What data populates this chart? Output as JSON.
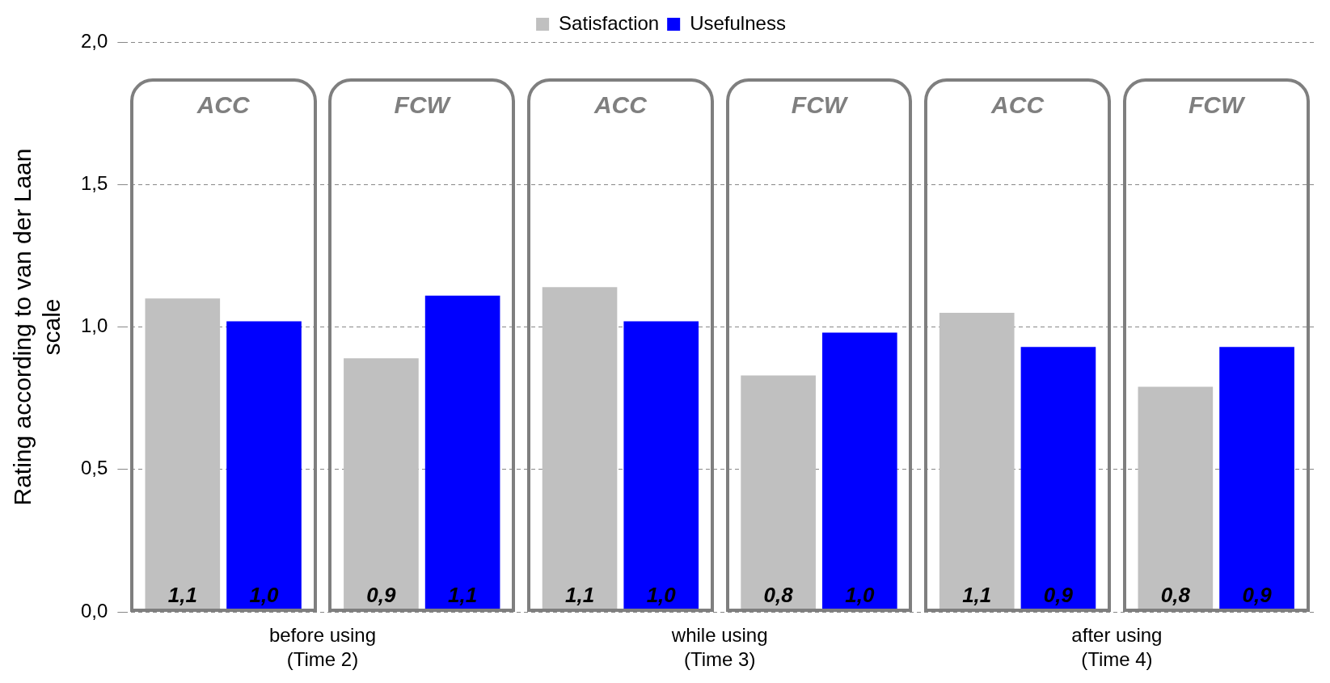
{
  "chart_data": {
    "type": "bar",
    "ylabel": "Rating according to van der Laan scale",
    "categories": [
      "ACC",
      "FCW",
      "ACC",
      "FCW",
      "ACC",
      "FCW"
    ],
    "series": [
      {
        "name": "Satisfaction",
        "color": "#c0c0c0",
        "values": [
          1.1,
          0.89,
          1.14,
          0.83,
          1.05,
          0.79
        ],
        "value_labels": [
          "1,1",
          "0,9",
          "1,1",
          "0,8",
          "1,1",
          "0,8"
        ]
      },
      {
        "name": "Usefulness",
        "color": "#0000ff",
        "values": [
          1.02,
          1.11,
          1.02,
          0.98,
          0.93,
          0.93
        ],
        "value_labels": [
          "1,0",
          "1,1",
          "1,0",
          "1,0",
          "0,9",
          "0,9"
        ]
      }
    ],
    "ylim": [
      0,
      2
    ],
    "yticks": [
      {
        "value": 0,
        "label": "0,0"
      },
      {
        "value": 0.5,
        "label": "0,5"
      },
      {
        "value": 1,
        "label": "1,0"
      },
      {
        "value": 1.5,
        "label": "1,5"
      },
      {
        "value": 2,
        "label": "2,0"
      }
    ],
    "grid": "y",
    "legend": "top",
    "annotations": [
      "before using\n(Time 2)",
      "while using\n(Time 3)",
      "after using\n(Time 4)"
    ]
  }
}
